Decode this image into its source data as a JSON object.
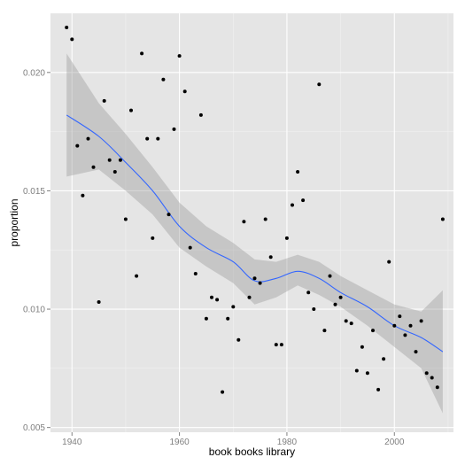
{
  "chart_data": {
    "type": "scatter",
    "title": "",
    "xlabel": "book books library",
    "ylabel": "proportion",
    "xlim": [
      1936,
      2011
    ],
    "ylim": [
      0.0048,
      0.0225
    ],
    "x_ticks": [
      1940,
      1960,
      1980,
      2000
    ],
    "x_tick_labels": [
      "1940",
      "1960",
      "1980",
      "2000"
    ],
    "y_ticks": [
      0.005,
      0.01,
      0.015,
      0.02
    ],
    "y_tick_labels": [
      "0.005",
      "0.010",
      "0.015",
      "0.020"
    ],
    "grid": true,
    "legend": "none",
    "points": [
      [
        1939,
        0.0219
      ],
      [
        1940,
        0.0214
      ],
      [
        1941,
        0.0169
      ],
      [
        1942,
        0.0148
      ],
      [
        1943,
        0.0172
      ],
      [
        1944,
        0.016
      ],
      [
        1945,
        0.0103
      ],
      [
        1946,
        0.0188
      ],
      [
        1947,
        0.0163
      ],
      [
        1948,
        0.0158
      ],
      [
        1949,
        0.0163
      ],
      [
        1950,
        0.0138
      ],
      [
        1951,
        0.0184
      ],
      [
        1952,
        0.0114
      ],
      [
        1953,
        0.0208
      ],
      [
        1954,
        0.0172
      ],
      [
        1955,
        0.013
      ],
      [
        1956,
        0.0172
      ],
      [
        1957,
        0.0197
      ],
      [
        1958,
        0.014
      ],
      [
        1959,
        0.0176
      ],
      [
        1960,
        0.0207
      ],
      [
        1961,
        0.0192
      ],
      [
        1962,
        0.0126
      ],
      [
        1963,
        0.0115
      ],
      [
        1964,
        0.0182
      ],
      [
        1965,
        0.0096
      ],
      [
        1966,
        0.0105
      ],
      [
        1967,
        0.0104
      ],
      [
        1968,
        0.0065
      ],
      [
        1969,
        0.0096
      ],
      [
        1970,
        0.0101
      ],
      [
        1971,
        0.0087
      ],
      [
        1972,
        0.0137
      ],
      [
        1973,
        0.0105
      ],
      [
        1974,
        0.0113
      ],
      [
        1975,
        0.0111
      ],
      [
        1976,
        0.0138
      ],
      [
        1977,
        0.0122
      ],
      [
        1978,
        0.0085
      ],
      [
        1979,
        0.0085
      ],
      [
        1980,
        0.013
      ],
      [
        1981,
        0.0144
      ],
      [
        1982,
        0.0158
      ],
      [
        1983,
        0.0146
      ],
      [
        1984,
        0.0107
      ],
      [
        1985,
        0.01
      ],
      [
        1986,
        0.0195
      ],
      [
        1987,
        0.0091
      ],
      [
        1988,
        0.0114
      ],
      [
        1989,
        0.0102
      ],
      [
        1990,
        0.0105
      ],
      [
        1991,
        0.0095
      ],
      [
        1992,
        0.0094
      ],
      [
        1993,
        0.0074
      ],
      [
        1994,
        0.0084
      ],
      [
        1995,
        0.0073
      ],
      [
        1996,
        0.0091
      ],
      [
        1997,
        0.0066
      ],
      [
        1998,
        0.0079
      ],
      [
        1999,
        0.012
      ],
      [
        2000,
        0.0093
      ],
      [
        2001,
        0.0097
      ],
      [
        2002,
        0.0089
      ],
      [
        2003,
        0.0093
      ],
      [
        2004,
        0.0082
      ],
      [
        2005,
        0.0095
      ],
      [
        2006,
        0.0073
      ],
      [
        2007,
        0.0071
      ],
      [
        2008,
        0.0067
      ],
      [
        2009,
        0.0138
      ]
    ],
    "smooth": {
      "x": [
        1939,
        1945,
        1950,
        1955,
        1960,
        1965,
        1970,
        1974,
        1978,
        1982,
        1986,
        1990,
        1995,
        2000,
        2005,
        2009
      ],
      "y": [
        0.0182,
        0.0173,
        0.0162,
        0.015,
        0.0135,
        0.0126,
        0.012,
        0.0112,
        0.0113,
        0.0116,
        0.0113,
        0.0107,
        0.0101,
        0.0093,
        0.0088,
        0.0082
      ],
      "lower": [
        0.0156,
        0.0159,
        0.015,
        0.014,
        0.0126,
        0.0118,
        0.0111,
        0.0102,
        0.0105,
        0.011,
        0.0106,
        0.0101,
        0.0093,
        0.0084,
        0.0075,
        0.0056
      ],
      "upper": [
        0.0208,
        0.0187,
        0.0174,
        0.016,
        0.0145,
        0.0135,
        0.0128,
        0.0121,
        0.012,
        0.0123,
        0.012,
        0.0114,
        0.0108,
        0.0102,
        0.0099,
        0.0108
      ]
    },
    "colors": {
      "panel": "#e5e5e5",
      "grid_major": "#ffffff",
      "grid_minor": "#f2f2f2",
      "points": "#000000",
      "line": "#3366ff",
      "ribbon": "#999999"
    }
  }
}
